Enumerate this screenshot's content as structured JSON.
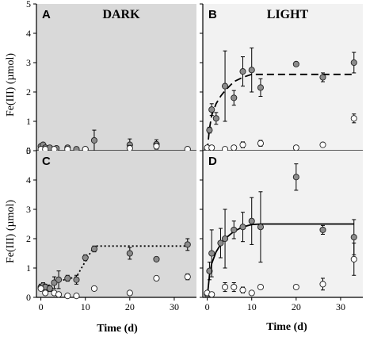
{
  "figure": {
    "ylabel": "Fe(III) (µmol)",
    "xlabel": "Time (d)"
  },
  "chart_data": [
    {
      "type": "scatter",
      "panel_letter": "A",
      "condition": "DARK",
      "background": "#d9d9d9",
      "xlim": [
        -1,
        35
      ],
      "ylim": [
        0,
        5
      ],
      "xticks": [
        0,
        10,
        20,
        30
      ],
      "yticks": [
        0,
        1,
        2,
        3,
        4,
        5
      ],
      "xlabel": "",
      "ylabel": "Fe(III) (µmol)",
      "series": [
        {
          "marker": "filled-gray",
          "points": [
            {
              "x": 0,
              "y": 0.15,
              "err": 0.05
            },
            {
              "x": 0.5,
              "y": 0.2,
              "err": 0.05
            },
            {
              "x": 1,
              "y": 0.1,
              "err": 0.05
            },
            {
              "x": 2,
              "y": 0.1,
              "err": 0.05
            },
            {
              "x": 3.5,
              "y": 0.08,
              "err": 0.05
            },
            {
              "x": 6,
              "y": 0.1,
              "err": 0.05
            },
            {
              "x": 8,
              "y": 0.05,
              "err": 0.05
            },
            {
              "x": 10,
              "y": 0.05,
              "err": 0.05
            },
            {
              "x": 12,
              "y": 0.35,
              "err": 0.35
            },
            {
              "x": 20,
              "y": 0.2,
              "err": 0.2
            },
            {
              "x": 26,
              "y": 0.22,
              "err": 0.15
            },
            {
              "x": 33,
              "y": 0.05,
              "err": 0.05
            }
          ]
        },
        {
          "marker": "open",
          "points": [
            {
              "x": 0,
              "y": 0.05,
              "err": 0
            },
            {
              "x": 1,
              "y": 0.05,
              "err": 0
            },
            {
              "x": 3,
              "y": 0.05,
              "err": 0
            },
            {
              "x": 6,
              "y": 0.05,
              "err": 0
            },
            {
              "x": 10,
              "y": 0.05,
              "err": 0
            },
            {
              "x": 20,
              "y": 0.08,
              "err": 0.1
            },
            {
              "x": 26,
              "y": 0.15,
              "err": 0.1
            },
            {
              "x": 33,
              "y": 0.05,
              "err": 0
            }
          ]
        }
      ],
      "fit": null
    },
    {
      "type": "scatter",
      "panel_letter": "B",
      "condition": "LIGHT",
      "background": "#f2f2f2",
      "xlim": [
        -1,
        35
      ],
      "ylim": [
        0,
        5
      ],
      "xticks": [
        0,
        10,
        20,
        30
      ],
      "yticks": [
        0,
        1,
        2,
        3,
        4,
        5
      ],
      "xlabel": "",
      "ylabel": "",
      "series": [
        {
          "marker": "filled-gray",
          "points": [
            {
              "x": 0,
              "y": 0.05,
              "err": 0.05
            },
            {
              "x": 0.5,
              "y": 0.7,
              "err": 0.1
            },
            {
              "x": 1,
              "y": 1.4,
              "err": 0.2
            },
            {
              "x": 2,
              "y": 1.1,
              "err": 0.2
            },
            {
              "x": 4,
              "y": 2.2,
              "err": 1.2
            },
            {
              "x": 6,
              "y": 1.8,
              "err": 0.25
            },
            {
              "x": 8,
              "y": 2.7,
              "err": 0.5
            },
            {
              "x": 10,
              "y": 2.75,
              "err": 0.75
            },
            {
              "x": 12,
              "y": 2.15,
              "err": 0.3
            },
            {
              "x": 20,
              "y": 2.95,
              "err": 0
            },
            {
              "x": 26,
              "y": 2.5,
              "err": 0.15
            },
            {
              "x": 33,
              "y": 3.0,
              "err": 0.35
            }
          ]
        },
        {
          "marker": "open",
          "points": [
            {
              "x": 0,
              "y": 0.1,
              "err": 0
            },
            {
              "x": 1,
              "y": 0.1,
              "err": 0
            },
            {
              "x": 4,
              "y": 0.05,
              "err": 0
            },
            {
              "x": 6,
              "y": 0.1,
              "err": 0
            },
            {
              "x": 8,
              "y": 0.2,
              "err": 0.1
            },
            {
              "x": 12,
              "y": 0.25,
              "err": 0.1
            },
            {
              "x": 20,
              "y": 0.1,
              "err": 0
            },
            {
              "x": 26,
              "y": 0.2,
              "err": 0
            },
            {
              "x": 33,
              "y": 1.1,
              "err": 0.15
            }
          ]
        }
      ],
      "fit": {
        "style": "dashed",
        "points": [
          [
            0,
            0
          ],
          [
            0.5,
            0.75
          ],
          [
            1,
            1.2
          ],
          [
            2,
            1.6
          ],
          [
            3,
            1.85
          ],
          [
            4,
            2.05
          ],
          [
            6,
            2.35
          ],
          [
            8,
            2.5
          ],
          [
            10,
            2.6
          ],
          [
            33,
            2.6
          ]
        ]
      }
    },
    {
      "type": "scatter",
      "panel_letter": "C",
      "condition": "",
      "background": "#d9d9d9",
      "xlim": [
        -1,
        35
      ],
      "ylim": [
        0,
        5
      ],
      "xticks": [
        0,
        10,
        20,
        30
      ],
      "yticks": [
        0,
        1,
        2,
        3,
        4,
        5
      ],
      "xlabel": "Time (d)",
      "ylabel": "Fe(III) (µmol)",
      "series": [
        {
          "marker": "filled-gray",
          "points": [
            {
              "x": 0,
              "y": 0.35,
              "err": 0.1
            },
            {
              "x": 0.5,
              "y": 0.4,
              "err": 0.1
            },
            {
              "x": 1,
              "y": 0.35,
              "err": 0.1
            },
            {
              "x": 2,
              "y": 0.3,
              "err": 0.1
            },
            {
              "x": 3,
              "y": 0.5,
              "err": 0.2
            },
            {
              "x": 4,
              "y": 0.6,
              "err": 0.3
            },
            {
              "x": 6,
              "y": 0.65,
              "err": 0.1
            },
            {
              "x": 8,
              "y": 0.6,
              "err": 0.15
            },
            {
              "x": 10,
              "y": 1.35,
              "err": 0.1
            },
            {
              "x": 12,
              "y": 1.65,
              "err": 0.1
            },
            {
              "x": 20,
              "y": 1.5,
              "err": 0.2
            },
            {
              "x": 26,
              "y": 1.3,
              "err": 0
            },
            {
              "x": 33,
              "y": 1.8,
              "err": 0.2
            }
          ]
        },
        {
          "marker": "open",
          "points": [
            {
              "x": 0,
              "y": 0.3,
              "err": 0
            },
            {
              "x": 1,
              "y": 0.15,
              "err": 0
            },
            {
              "x": 3,
              "y": 0.15,
              "err": 0
            },
            {
              "x": 4,
              "y": 0.1,
              "err": 0
            },
            {
              "x": 6,
              "y": 0.05,
              "err": 0
            },
            {
              "x": 8,
              "y": 0.05,
              "err": 0
            },
            {
              "x": 12,
              "y": 0.3,
              "err": 0
            },
            {
              "x": 20,
              "y": 0.15,
              "err": 0
            },
            {
              "x": 26,
              "y": 0.65,
              "err": 0
            },
            {
              "x": 33,
              "y": 0.7,
              "err": 0.1
            }
          ]
        }
      ],
      "fit": {
        "style": "dotted",
        "points": [
          [
            0,
            0.3
          ],
          [
            4,
            0.55
          ],
          [
            8,
            0.7
          ],
          [
            12,
            1.75
          ],
          [
            33,
            1.75
          ]
        ]
      }
    },
    {
      "type": "scatter",
      "panel_letter": "D",
      "condition": "",
      "background": "#f2f2f2",
      "xlim": [
        -1,
        35
      ],
      "ylim": [
        0,
        5
      ],
      "xticks": [
        0,
        10,
        20,
        30
      ],
      "yticks": [
        0,
        1,
        2,
        3,
        4,
        5
      ],
      "xlabel": "Time (d)",
      "ylabel": "",
      "series": [
        {
          "marker": "filled-gray",
          "points": [
            {
              "x": 0,
              "y": 0.1,
              "err": 0.05
            },
            {
              "x": 0.5,
              "y": 0.9,
              "err": 0.3
            },
            {
              "x": 1,
              "y": 1.5,
              "err": 0.8
            },
            {
              "x": 3,
              "y": 1.85,
              "err": 0.5
            },
            {
              "x": 4,
              "y": 2.0,
              "err": 1.0
            },
            {
              "x": 6,
              "y": 2.3,
              "err": 0.3
            },
            {
              "x": 8,
              "y": 2.4,
              "err": 0.5
            },
            {
              "x": 10,
              "y": 2.6,
              "err": 0.8
            },
            {
              "x": 12,
              "y": 2.4,
              "err": 1.2
            },
            {
              "x": 20,
              "y": 4.1,
              "err": 0.45
            },
            {
              "x": 26,
              "y": 2.3,
              "err": 0.15
            },
            {
              "x": 33,
              "y": 2.05,
              "err": 0.6
            }
          ]
        },
        {
          "marker": "open",
          "points": [
            {
              "x": 0,
              "y": 0.15,
              "err": 0
            },
            {
              "x": 1,
              "y": 0.1,
              "err": 0
            },
            {
              "x": 4,
              "y": 0.35,
              "err": 0.15
            },
            {
              "x": 6,
              "y": 0.35,
              "err": 0.15
            },
            {
              "x": 8,
              "y": 0.25,
              "err": 0.1
            },
            {
              "x": 10,
              "y": 0.15,
              "err": 0
            },
            {
              "x": 12,
              "y": 0.35,
              "err": 0
            },
            {
              "x": 20,
              "y": 0.35,
              "err": 0
            },
            {
              "x": 26,
              "y": 0.45,
              "err": 0.2
            },
            {
              "x": 33,
              "y": 1.3,
              "err": 0.55
            }
          ]
        }
      ],
      "fit": {
        "style": "solid",
        "points": [
          [
            0,
            0
          ],
          [
            0.5,
            0.75
          ],
          [
            1,
            1.15
          ],
          [
            2,
            1.55
          ],
          [
            3,
            1.8
          ],
          [
            4,
            2.0
          ],
          [
            6,
            2.25
          ],
          [
            8,
            2.4
          ],
          [
            10,
            2.48
          ],
          [
            12,
            2.5
          ],
          [
            33,
            2.5
          ]
        ]
      }
    }
  ]
}
